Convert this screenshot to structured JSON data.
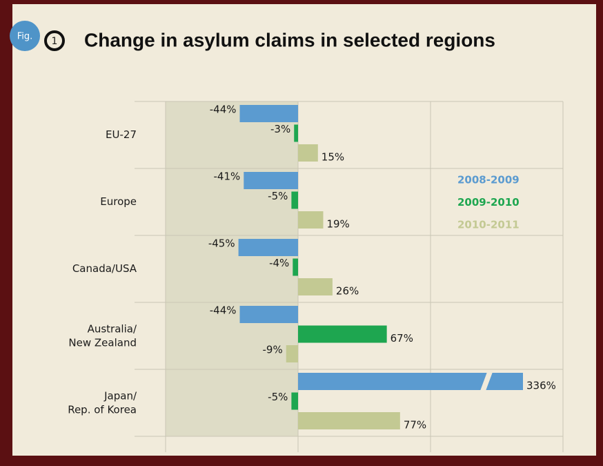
{
  "chart_data": {
    "type": "bar",
    "orientation": "horizontal",
    "fig_label": "Fig.",
    "fig_number": "1",
    "title": "Change in asylum claims in selected regions",
    "categories": [
      "EU-27",
      "Europe",
      "Canada/USA",
      "Australia/\nNew Zealand",
      "Japan/\nRep. of Korea"
    ],
    "series": [
      {
        "name": "2008-2009",
        "color": "#5b9bd0",
        "values": [
          -44,
          -41,
          -45,
          -44,
          336
        ],
        "value_labels": [
          "-44%",
          "-41%",
          "-45%",
          "-44%",
          "336%"
        ]
      },
      {
        "name": "2009-2010",
        "color": "#1ea650",
        "values": [
          -3,
          -5,
          -4,
          67,
          -5
        ],
        "value_labels": [
          "-3%",
          "-5%",
          "-4%",
          "67%",
          "-5%"
        ]
      },
      {
        "name": "2010-2011",
        "color": "#c3c993",
        "values": [
          15,
          19,
          26,
          -9,
          77
        ],
        "value_labels": [
          "15%",
          "19%",
          "26%",
          "-9%",
          "77%"
        ]
      }
    ],
    "xlim": [
      -100,
      200
    ],
    "xticks": [
      -100,
      0,
      100,
      200
    ],
    "grid": true
  }
}
